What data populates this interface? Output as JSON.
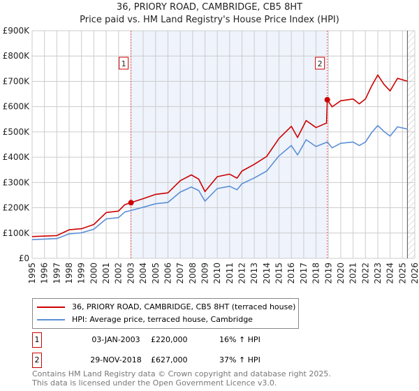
{
  "chart_data": {
    "type": "line",
    "title": "36, PRIORY ROAD, CAMBRIDGE, CB5 8HT",
    "subtitle": "Price paid vs. HM Land Registry's House Price Index (HPI)",
    "xlim": [
      1995,
      2026
    ],
    "ylim": [
      0,
      900000
    ],
    "x_ticks": [
      "1995",
      "1996",
      "1997",
      "1998",
      "1999",
      "2000",
      "2001",
      "2002",
      "2003",
      "2004",
      "2005",
      "2006",
      "2007",
      "2008",
      "2009",
      "2010",
      "2011",
      "2012",
      "2013",
      "2014",
      "2015",
      "2016",
      "2017",
      "2018",
      "2019",
      "2020",
      "2021",
      "2022",
      "2023",
      "2024",
      "2025",
      "2026"
    ],
    "y_ticks": [
      {
        "v": 0,
        "label": "£0"
      },
      {
        "v": 100000,
        "label": "£100K"
      },
      {
        "v": 200000,
        "label": "£200K"
      },
      {
        "v": 300000,
        "label": "£300K"
      },
      {
        "v": 400000,
        "label": "£400K"
      },
      {
        "v": 500000,
        "label": "£500K"
      },
      {
        "v": 600000,
        "label": "£600K"
      },
      {
        "v": 700000,
        "label": "£700K"
      },
      {
        "v": 800000,
        "label": "£800K"
      },
      {
        "v": 900000,
        "label": "£900K"
      }
    ],
    "grid": true,
    "shaded_range": [
      2003.01,
      2018.91
    ],
    "hatched_from": 2025.4,
    "series": [
      {
        "name": "36, PRIORY ROAD, CAMBRIDGE, CB5 8HT (terraced house)",
        "color": "#cc0000",
        "x": [
          1995,
          1997,
          1998,
          1999,
          2000,
          2001,
          2002,
          2002.5,
          2003,
          2004,
          2005,
          2006,
          2007,
          2007.9,
          2008.5,
          2009,
          2010,
          2011,
          2011.6,
          2012,
          2013,
          2014,
          2015,
          2016,
          2016.5,
          2017.2,
          2018,
          2018.85,
          2018.91,
          2019.3,
          2020,
          2021,
          2021.5,
          2022,
          2022.5,
          2023,
          2023.5,
          2024,
          2024.6,
          2025.4
        ],
        "y": [
          86000,
          90000,
          113000,
          117000,
          134000,
          181000,
          187000,
          212000,
          220000,
          236000,
          253000,
          259000,
          307000,
          330000,
          313000,
          264000,
          323000,
          333000,
          317000,
          345000,
          372000,
          403000,
          474000,
          522000,
          478000,
          545000,
          517000,
          535000,
          627000,
          599000,
          623000,
          630000,
          611000,
          630000,
          681000,
          725000,
          688000,
          662000,
          712000,
          700000
        ]
      },
      {
        "name": "HPI: Average price, terraced house, Cambridge",
        "color": "#5b8fd6",
        "x": [
          1995,
          1997,
          1998,
          1999,
          2000,
          2001,
          2002,
          2002.5,
          2003,
          2004,
          2005,
          2006,
          2007,
          2007.9,
          2008.5,
          2009,
          2010,
          2011,
          2011.6,
          2012,
          2013,
          2014,
          2015,
          2016,
          2016.5,
          2017.2,
          2018,
          2018.91,
          2019.3,
          2020,
          2021,
          2021.5,
          2022,
          2022.5,
          2023,
          2023.5,
          2024,
          2024.6,
          2025.4
        ],
        "y": [
          74000,
          78000,
          97000,
          101000,
          115000,
          156000,
          161000,
          183000,
          189000,
          202000,
          216000,
          221000,
          262000,
          282000,
          268000,
          226000,
          276000,
          285000,
          271000,
          295000,
          318000,
          345000,
          405000,
          446000,
          409000,
          469000,
          442000,
          460000,
          437000,
          455000,
          460000,
          446000,
          460000,
          497000,
          525000,
          502000,
          483000,
          520000,
          511000
        ]
      }
    ],
    "markers": [
      {
        "label": "1",
        "x": 2003.01,
        "y": 220000
      },
      {
        "label": "2",
        "x": 2018.91,
        "y": 627000
      }
    ]
  },
  "legend": {
    "property": "36, PRIORY ROAD, CAMBRIDGE, CB5 8HT (terraced house)",
    "hpi": "HPI: Average price, terraced house, Cambridge"
  },
  "transactions": [
    {
      "num": "1",
      "date": "03-JAN-2003",
      "price": "£220,000",
      "hpi": "16% ↑ HPI"
    },
    {
      "num": "2",
      "date": "29-NOV-2018",
      "price": "£627,000",
      "hpi": "37% ↑ HPI"
    }
  ],
  "footer": {
    "line1": "Contains HM Land Registry data © Crown copyright and database right 2025.",
    "line2": "This data is licensed under the Open Government Licence v3.0."
  }
}
